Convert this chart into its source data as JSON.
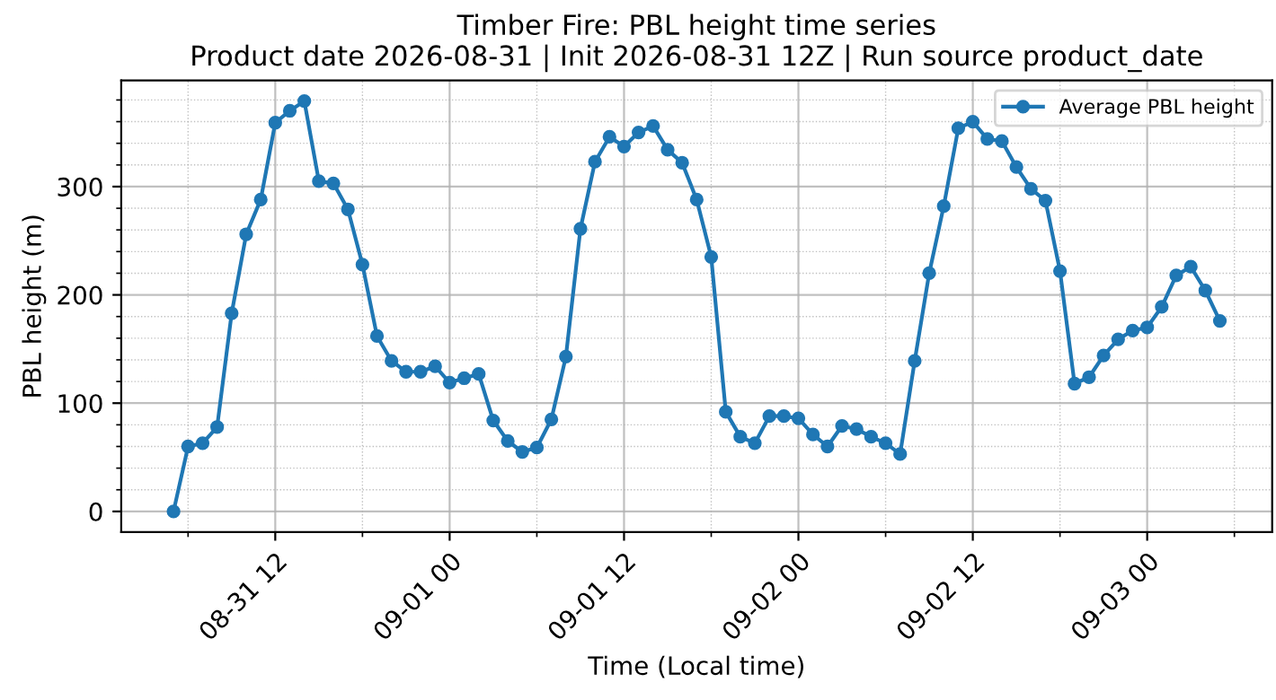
{
  "chart_data": {
    "type": "line",
    "title": "Timber Fire: PBL height time series\nProduct date 2026-08-31 | Init 2026-08-31 12Z | Run source product_date",
    "xlabel": "Time (Local time)",
    "ylabel": "PBL height (m)",
    "x": [
      "2026-08-31T05:00",
      "2026-08-31T06:00",
      "2026-08-31T07:00",
      "2026-08-31T08:00",
      "2026-08-31T09:00",
      "2026-08-31T10:00",
      "2026-08-31T11:00",
      "2026-08-31T12:00",
      "2026-08-31T13:00",
      "2026-08-31T14:00",
      "2026-08-31T15:00",
      "2026-08-31T16:00",
      "2026-08-31T17:00",
      "2026-08-31T18:00",
      "2026-08-31T19:00",
      "2026-08-31T20:00",
      "2026-08-31T21:00",
      "2026-08-31T22:00",
      "2026-08-31T23:00",
      "2026-09-01T00:00",
      "2026-09-01T01:00",
      "2026-09-01T02:00",
      "2026-09-01T03:00",
      "2026-09-01T04:00",
      "2026-09-01T05:00",
      "2026-09-01T06:00",
      "2026-09-01T07:00",
      "2026-09-01T08:00",
      "2026-09-01T09:00",
      "2026-09-01T10:00",
      "2026-09-01T11:00",
      "2026-09-01T12:00",
      "2026-09-01T13:00",
      "2026-09-01T14:00",
      "2026-09-01T15:00",
      "2026-09-01T16:00",
      "2026-09-01T17:00",
      "2026-09-01T18:00",
      "2026-09-01T19:00",
      "2026-09-01T20:00",
      "2026-09-01T21:00",
      "2026-09-01T22:00",
      "2026-09-01T23:00",
      "2026-09-02T00:00",
      "2026-09-02T01:00",
      "2026-09-02T02:00",
      "2026-09-02T03:00",
      "2026-09-02T04:00",
      "2026-09-02T05:00",
      "2026-09-02T06:00",
      "2026-09-02T07:00",
      "2026-09-02T08:00",
      "2026-09-02T09:00",
      "2026-09-02T10:00",
      "2026-09-02T11:00",
      "2026-09-02T12:00",
      "2026-09-02T13:00",
      "2026-09-02T14:00",
      "2026-09-02T15:00",
      "2026-09-02T16:00",
      "2026-09-02T17:00",
      "2026-09-02T18:00",
      "2026-09-02T19:00",
      "2026-09-02T20:00",
      "2026-09-02T21:00",
      "2026-09-02T22:00",
      "2026-09-02T23:00",
      "2026-09-03T00:00",
      "2026-09-03T01:00",
      "2026-09-03T02:00",
      "2026-09-03T03:00",
      "2026-09-03T04:00",
      "2026-09-03T05:00"
    ],
    "series": [
      {
        "name": "Average PBL height",
        "color": "#1f77b4",
        "values": [
          0,
          60,
          63,
          78,
          183,
          256,
          288,
          359,
          370,
          379,
          305,
          303,
          279,
          228,
          162,
          139,
          129,
          129,
          134,
          119,
          123,
          127,
          84,
          65,
          55,
          59,
          85,
          143,
          261,
          323,
          346,
          337,
          350,
          356,
          334,
          322,
          288,
          235,
          92,
          69,
          63,
          88,
          88,
          86,
          71,
          60,
          79,
          76,
          69,
          63,
          53,
          139,
          220,
          282,
          354,
          360,
          344,
          342,
          318,
          298,
          287,
          222,
          118,
          124,
          144,
          159,
          167,
          170,
          189,
          218,
          226,
          204,
          176
        ]
      }
    ],
    "xlim": [
      "2026-08-31T01:24",
      "2026-09-03T08:36"
    ],
    "xticks": [
      {
        "value": "2026-08-31T06:00",
        "label": null
      },
      {
        "value": "2026-08-31T12:00",
        "label": "08-31 12"
      },
      {
        "value": "2026-08-31T18:00",
        "label": null
      },
      {
        "value": "2026-09-01T00:00",
        "label": "09-01 00"
      },
      {
        "value": "2026-09-01T06:00",
        "label": null
      },
      {
        "value": "2026-09-01T12:00",
        "label": "09-01 12"
      },
      {
        "value": "2026-09-01T18:00",
        "label": null
      },
      {
        "value": "2026-09-02T00:00",
        "label": "09-02 00"
      },
      {
        "value": "2026-09-02T06:00",
        "label": null
      },
      {
        "value": "2026-09-02T12:00",
        "label": "09-02 12"
      },
      {
        "value": "2026-09-02T18:00",
        "label": null
      },
      {
        "value": "2026-09-03T00:00",
        "label": "09-03 00"
      },
      {
        "value": "2026-09-03T06:00",
        "label": null
      }
    ],
    "ylim": [
      -19,
      398
    ],
    "yticks": [
      0,
      {
        "value": 20,
        "label": null
      },
      {
        "value": 40,
        "label": null
      },
      {
        "value": 60,
        "label": null
      },
      {
        "value": 80,
        "label": null
      },
      100,
      {
        "value": 120,
        "label": null
      },
      {
        "value": 140,
        "label": null
      },
      {
        "value": 160,
        "label": null
      },
      {
        "value": 180,
        "label": null
      },
      200,
      {
        "value": 220,
        "label": null
      },
      {
        "value": 240,
        "label": null
      },
      {
        "value": 260,
        "label": null
      },
      {
        "value": 280,
        "label": null
      },
      300,
      {
        "value": 320,
        "label": null
      },
      {
        "value": 340,
        "label": null
      },
      {
        "value": 360,
        "label": null
      },
      {
        "value": 380,
        "label": null
      }
    ],
    "grid": true,
    "legend": "top right",
    "marker": "circle",
    "line_style": "solid"
  }
}
